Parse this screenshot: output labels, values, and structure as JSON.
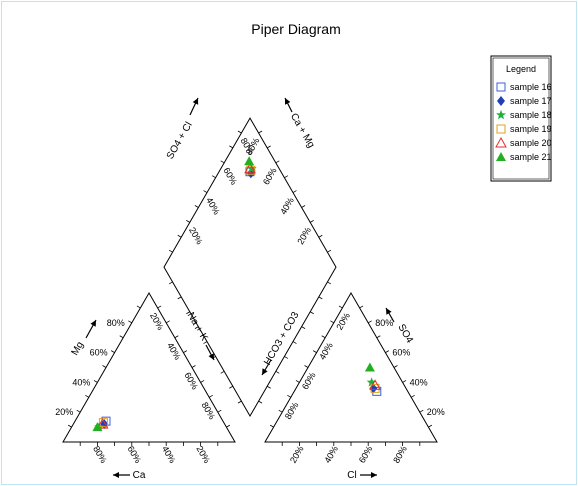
{
  "chart_data": {
    "type": "scatter",
    "title": "Piper Diagram",
    "legend": {
      "title": "Legend",
      "placement": "top-right",
      "items": [
        {
          "name": "sample 16",
          "marker": "square-open",
          "color": "#3b5fd9"
        },
        {
          "name": "sample 17",
          "marker": "diamond-filled",
          "color": "#1f3fb8"
        },
        {
          "name": "sample 18",
          "marker": "star-filled",
          "color": "#20b040"
        },
        {
          "name": "sample 19",
          "marker": "square-open",
          "color": "#e0a020"
        },
        {
          "name": "sample 20",
          "marker": "triangle-open",
          "color": "#e03030"
        },
        {
          "name": "sample 21",
          "marker": "triangle-filled",
          "color": "#20b020"
        }
      ]
    },
    "cation_triangle": {
      "left_axis_label": "Mg",
      "bottom_axis_label": "Ca",
      "right_axis_label": "Na + K",
      "left_ticks": [
        "20%",
        "40%",
        "60%",
        "80%"
      ],
      "bottom_ticks": [
        "80%",
        "60%",
        "40%",
        "20%"
      ],
      "right_ticks": [
        "20%",
        "40%",
        "60%",
        "80%"
      ]
    },
    "anion_triangle": {
      "left_axis_label": "HCO3 + CO3",
      "bottom_axis_label": "Cl",
      "right_axis_label": "SO4",
      "left_ticks": [
        "20%",
        "40%",
        "60%",
        "80%"
      ],
      "bottom_ticks": [
        "20%",
        "40%",
        "60%",
        "80%"
      ],
      "right_ticks": [
        "20%",
        "40%",
        "60%",
        "80%"
      ]
    },
    "diamond": {
      "upper_left_axis_label": "SO4 + Cl",
      "upper_right_axis_label": "Ca + Mg",
      "upper_left_ticks": [
        "20%",
        "40%",
        "60%",
        "80%"
      ],
      "upper_right_ticks": [
        "20%",
        "40%",
        "60%",
        "80%"
      ]
    },
    "samples": [
      {
        "name": "sample 16",
        "ca": 68,
        "mg": 14,
        "na_k": 18,
        "cl": 48,
        "so4": 34,
        "hco3": 18
      },
      {
        "name": "sample 17",
        "ca": 70,
        "mg": 12,
        "na_k": 18,
        "cl": 45,
        "so4": 36,
        "hco3": 19
      },
      {
        "name": "sample 18",
        "ca": 74,
        "mg": 10,
        "na_k": 16,
        "cl": 42,
        "so4": 40,
        "hco3": 18
      },
      {
        "name": "sample 19",
        "ca": 70,
        "mg": 13,
        "na_k": 17,
        "cl": 46,
        "so4": 36,
        "hco3": 18
      },
      {
        "name": "sample 20",
        "ca": 71,
        "mg": 12,
        "na_k": 17,
        "cl": 45,
        "so4": 38,
        "hco3": 17
      },
      {
        "name": "sample 21",
        "ca": 75,
        "mg": 10,
        "na_k": 15,
        "cl": 36,
        "so4": 50,
        "hco3": 14
      }
    ]
  }
}
